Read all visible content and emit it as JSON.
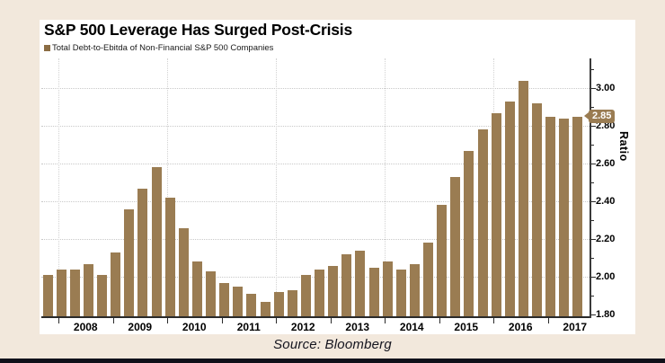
{
  "page": {
    "background": "#f2e8dc",
    "bottom_bar_color": "#10101a"
  },
  "header": {
    "title": "S&P 500 Leverage Has Surged Post-Crisis"
  },
  "legend": {
    "swatch_color": "#8b6d44",
    "label": "Total Debt-to-Ebitda of Non-Financial S&P 500 Companies"
  },
  "source": {
    "text": "Source: Bloomberg"
  },
  "callout": {
    "value": "2.85",
    "background": "#9a7c52",
    "text_color": "#ffffff"
  },
  "chart_data": {
    "type": "bar",
    "title": "S&P 500 Leverage Has Surged Post-Crisis",
    "series_label": "Total Debt-to-Ebitda of Non-Financial S&P 500 Companies",
    "ylabel": "Ratio",
    "xlabel": "",
    "bar_color": "#9a7c52",
    "grid": "dotted horizontal at 0.20 steps, dotted vertical at even years",
    "ylim": [
      1.787,
      3.158
    ],
    "ytick_major_labels": [
      "1.80",
      "2.00",
      "2.20",
      "2.40",
      "2.60",
      "2.80",
      "3.00"
    ],
    "yticks_major": [
      1.8,
      2.0,
      2.2,
      2.4,
      2.6,
      2.8,
      3.0
    ],
    "yticks_minor": [
      1.9,
      2.1,
      2.3,
      2.5,
      2.7,
      2.9,
      3.1
    ],
    "gridlines_y": [
      2.0,
      2.2,
      2.4,
      2.6,
      2.8,
      3.0
    ],
    "gridline_years": [
      2008,
      2010,
      2012,
      2014,
      2016
    ],
    "x_year_labels": [
      "2008",
      "2009",
      "2010",
      "2011",
      "2012",
      "2013",
      "2014",
      "2015",
      "2016",
      "2017"
    ],
    "latest_value_label": "2.85",
    "points": [
      {
        "period": "2007 Q4",
        "value": 2.01
      },
      {
        "period": "2008 Q1",
        "value": 2.04
      },
      {
        "period": "2008 Q2",
        "value": 2.04
      },
      {
        "period": "2008 Q3",
        "value": 2.07
      },
      {
        "period": "2008 Q4",
        "value": 2.01
      },
      {
        "period": "2009 Q1",
        "value": 2.13
      },
      {
        "period": "2009 Q2",
        "value": 2.36
      },
      {
        "period": "2009 Q3",
        "value": 2.47
      },
      {
        "period": "2009 Q4",
        "value": 2.58
      },
      {
        "period": "2010 Q1",
        "value": 2.42
      },
      {
        "period": "2010 Q2",
        "value": 2.26
      },
      {
        "period": "2010 Q3",
        "value": 2.08
      },
      {
        "period": "2010 Q4",
        "value": 2.03
      },
      {
        "period": "2011 Q1",
        "value": 1.97
      },
      {
        "period": "2011 Q2",
        "value": 1.95
      },
      {
        "period": "2011 Q3",
        "value": 1.91
      },
      {
        "period": "2011 Q4",
        "value": 1.87
      },
      {
        "period": "2012 Q1",
        "value": 1.92
      },
      {
        "period": "2012 Q2",
        "value": 1.93
      },
      {
        "period": "2012 Q3",
        "value": 2.01
      },
      {
        "period": "2012 Q4",
        "value": 2.04
      },
      {
        "period": "2013 Q1",
        "value": 2.06
      },
      {
        "period": "2013 Q2",
        "value": 2.12
      },
      {
        "period": "2013 Q3",
        "value": 2.14
      },
      {
        "period": "2013 Q4",
        "value": 2.05
      },
      {
        "period": "2014 Q1",
        "value": 2.08
      },
      {
        "period": "2014 Q2",
        "value": 2.04
      },
      {
        "period": "2014 Q3",
        "value": 2.07
      },
      {
        "period": "2014 Q4",
        "value": 2.18
      },
      {
        "period": "2015 Q1",
        "value": 2.38
      },
      {
        "period": "2015 Q2",
        "value": 2.53
      },
      {
        "period": "2015 Q3",
        "value": 2.67
      },
      {
        "period": "2015 Q4",
        "value": 2.78
      },
      {
        "period": "2016 Q1",
        "value": 2.87
      },
      {
        "period": "2016 Q2",
        "value": 2.93
      },
      {
        "period": "2016 Q3",
        "value": 3.04
      },
      {
        "period": "2016 Q4",
        "value": 2.92
      },
      {
        "period": "2017 Q1",
        "value": 2.85
      },
      {
        "period": "2017 Q2",
        "value": 2.84
      },
      {
        "period": "2017 Q3",
        "value": 2.85
      }
    ]
  }
}
